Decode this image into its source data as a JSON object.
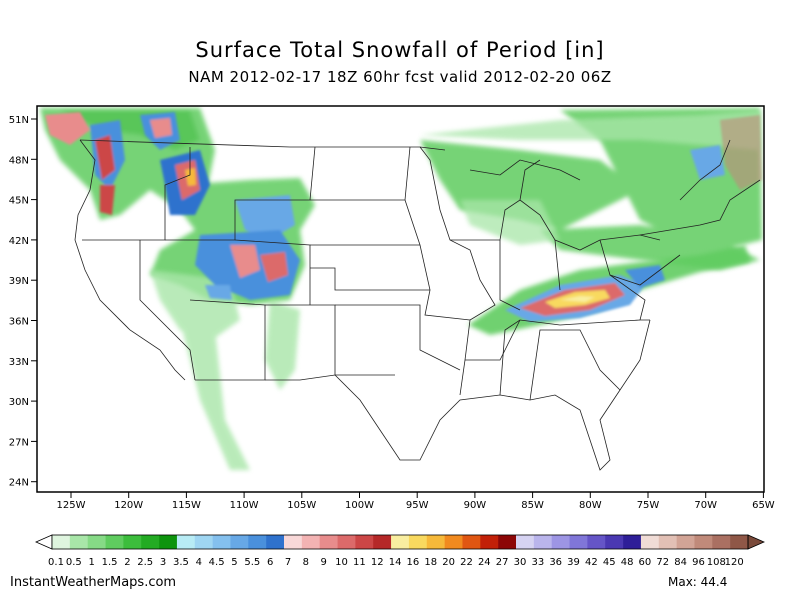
{
  "header": {
    "title": "Surface Total Snowfall of Period [in]",
    "subtitle": "NAM 2012-02-17 18Z 60hr fcst valid 2012-02-20 06Z"
  },
  "axes": {
    "lat_labels": [
      "51N",
      "48N",
      "45N",
      "42N",
      "39N",
      "36N",
      "33N",
      "30N",
      "27N",
      "24N"
    ],
    "lon_labels": [
      "125W",
      "120W",
      "115W",
      "110W",
      "105W",
      "100W",
      "95W",
      "90W",
      "85W",
      "80W",
      "75W",
      "70W",
      "65W"
    ]
  },
  "legend": {
    "labels": [
      "0.1",
      "0.5",
      "1",
      "1.5",
      "2",
      "2.5",
      "3",
      "3.5",
      "4",
      "4.5",
      "5",
      "5.5",
      "6",
      "7",
      "8",
      "9",
      "10",
      "11",
      "12",
      "14",
      "16",
      "18",
      "20",
      "22",
      "24",
      "27",
      "30",
      "33",
      "36",
      "39",
      "42",
      "45",
      "48",
      "60",
      "72",
      "84",
      "96",
      "108",
      "120"
    ],
    "colors": [
      "#dff5df",
      "#a8e6a8",
      "#86da86",
      "#5fcc5f",
      "#3cbd3c",
      "#23ab23",
      "#0d940d",
      "#b8ecf5",
      "#9fd6f2",
      "#84c0ee",
      "#67a8e6",
      "#4a90dc",
      "#2f72cd",
      "#f8d8d8",
      "#f3b3b3",
      "#e88c8c",
      "#dc6a6a",
      "#cc4646",
      "#b52828",
      "#f9eea0",
      "#f8d95f",
      "#f6b93a",
      "#f18a1f",
      "#e05612",
      "#c22008",
      "#8c0606",
      "#d6d3f2",
      "#bab5ec",
      "#9d95e4",
      "#8076d8",
      "#6555c7",
      "#4a38b2",
      "#2e1e98",
      "#f0dcd6",
      "#e2c0b5",
      "#d2a496",
      "#c08a7a",
      "#aa7062",
      "#8f5747"
    ]
  },
  "footer": {
    "source": "InstantWeatherMaps.com",
    "max_label": "Max:  44.4"
  }
}
